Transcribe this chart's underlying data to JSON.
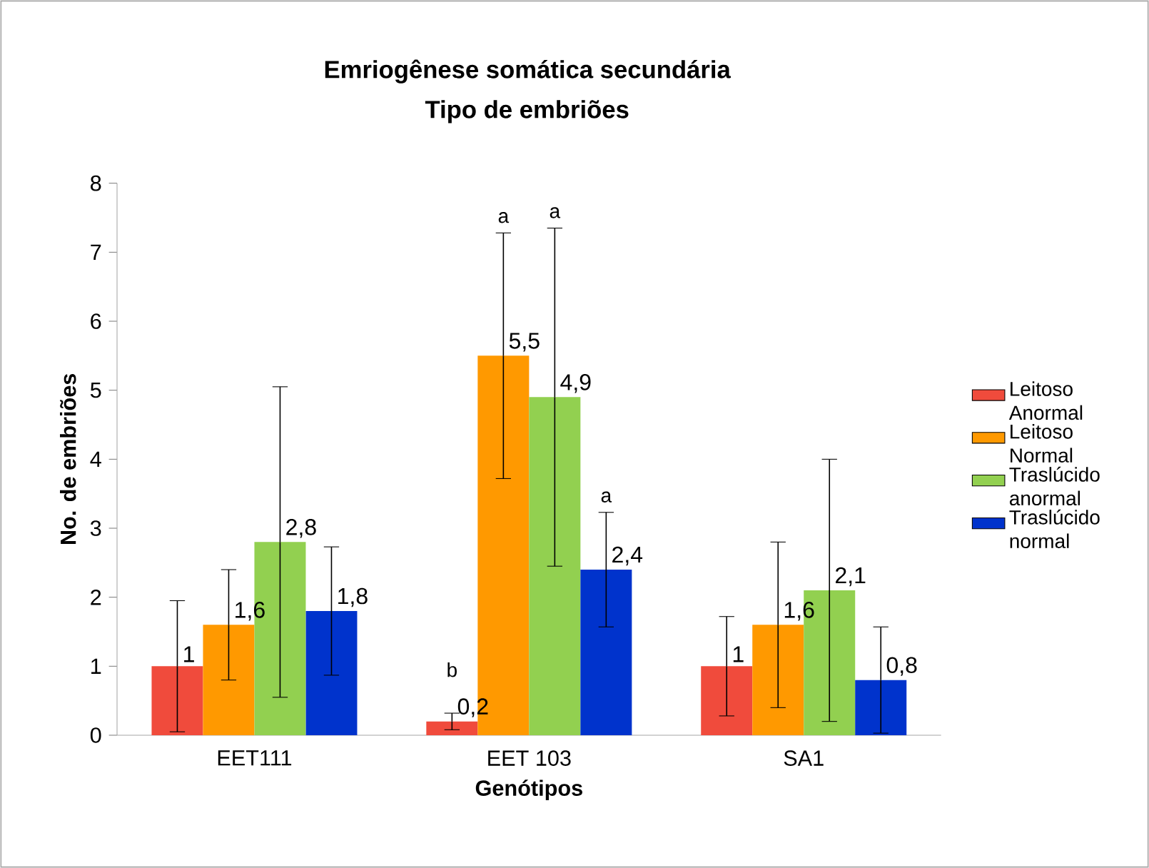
{
  "chart_data": {
    "type": "bar",
    "title": "Emriogênese somática secundária",
    "subtitle": "Tipo de embriões",
    "xlabel": "Genótipos",
    "ylabel": "No. de embriões",
    "categories": [
      "EET111",
      "EET 103",
      "SA1"
    ],
    "series": [
      {
        "name": "Leitoso Anormal",
        "color": "#f04b3c",
        "values": [
          1,
          0.2,
          1
        ],
        "errors": [
          0.95,
          0.12,
          0.72
        ],
        "value_labels": [
          "1",
          "0,2",
          "1"
        ]
      },
      {
        "name": "Leitoso Normal",
        "color": "#ff9900",
        "values": [
          1.6,
          5.5,
          1.6
        ],
        "errors": [
          0.8,
          1.78,
          1.2
        ],
        "value_labels": [
          "1,6",
          "5,5",
          "1,6"
        ]
      },
      {
        "name": "Traslúcido anormal",
        "color": "#92d050",
        "values": [
          2.8,
          4.9,
          2.1
        ],
        "errors": [
          2.25,
          2.45,
          1.9
        ],
        "value_labels": [
          "2,8",
          "4,9",
          "2,1"
        ]
      },
      {
        "name": "Traslúcido normal",
        "color": "#0033cc",
        "values": [
          1.8,
          2.4,
          0.8
        ],
        "errors": [
          0.93,
          0.83,
          0.77
        ],
        "value_labels": [
          "1,8",
          "2,4",
          "0,8"
        ]
      }
    ],
    "annotations": [
      "b",
      "a",
      "a",
      "a"
    ],
    "ylim": [
      0,
      8
    ],
    "yticks": [
      0,
      1,
      2,
      3,
      4,
      5,
      6,
      7,
      8
    ],
    "legend": "right"
  }
}
